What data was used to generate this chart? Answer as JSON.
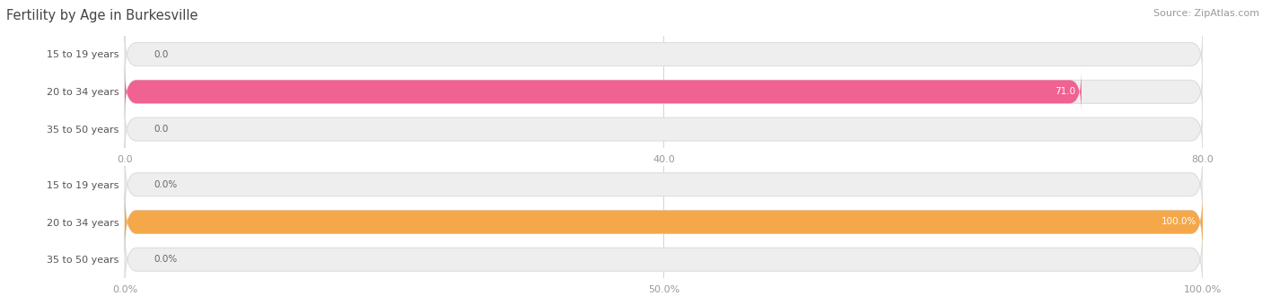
{
  "title": "Fertility by Age in Burkesville",
  "source": "Source: ZipAtlas.com",
  "top_chart": {
    "categories": [
      "15 to 19 years",
      "20 to 34 years",
      "35 to 50 years"
    ],
    "values": [
      0.0,
      71.0,
      0.0
    ],
    "max_value": 80.0,
    "tick_values": [
      0.0,
      40.0,
      80.0
    ],
    "tick_labels": [
      "0.0",
      "40.0",
      "80.0"
    ],
    "bar_color": "#f06292",
    "bar_bg_color": "#eeeeee",
    "bar_border_color": "#dddddd",
    "value_label_color": "#666666",
    "value_label_inside_color": "#ffffff",
    "label_color": "#555555"
  },
  "bottom_chart": {
    "categories": [
      "15 to 19 years",
      "20 to 34 years",
      "35 to 50 years"
    ],
    "values": [
      0.0,
      100.0,
      0.0
    ],
    "max_value": 100.0,
    "tick_values": [
      0.0,
      50.0,
      100.0
    ],
    "tick_labels": [
      "0.0%",
      "50.0%",
      "100.0%"
    ],
    "bar_color": "#f4a84a",
    "bar_bg_color": "#eeeeee",
    "bar_border_color": "#dddddd",
    "value_label_color": "#666666",
    "value_label_inside_color": "#ffffff",
    "label_color": "#555555"
  },
  "bg_color": "#ffffff",
  "title_color": "#444444",
  "title_fontsize": 10.5,
  "source_color": "#999999",
  "source_fontsize": 8,
  "bar_height": 0.62,
  "label_fontsize": 8,
  "value_fontsize": 7.5
}
